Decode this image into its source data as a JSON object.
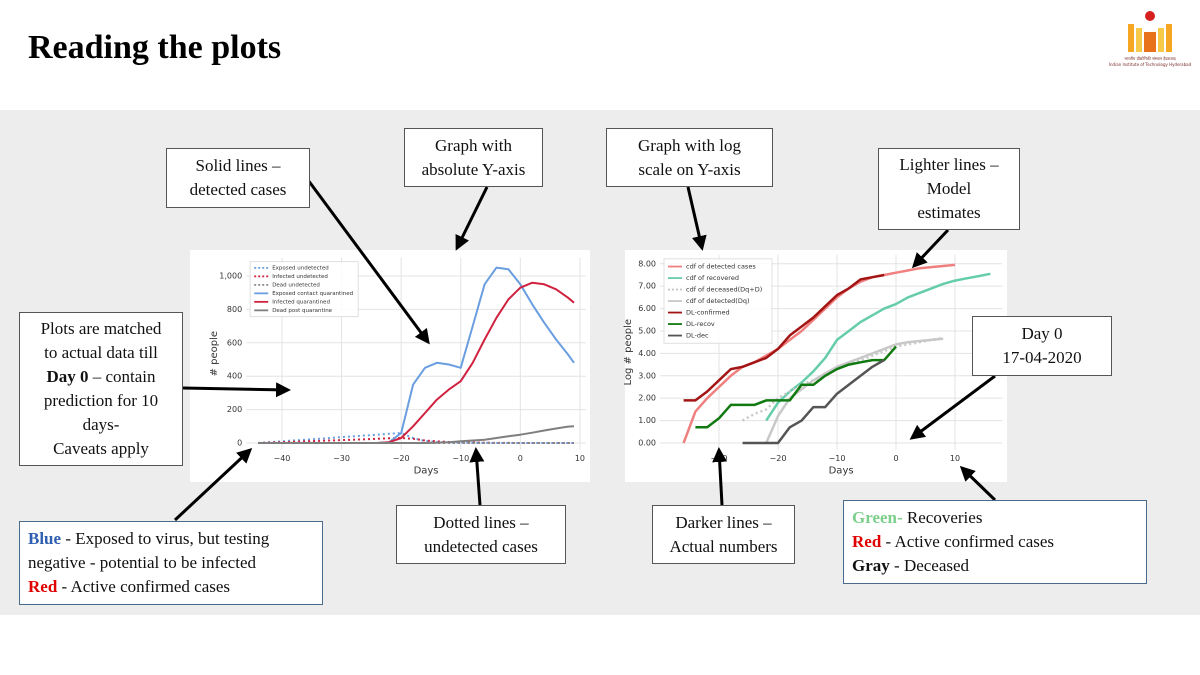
{
  "title": "Reading the plots",
  "logo": {
    "caption_hi": "भारतीय प्रौद्योगिकी संस्थान हैदराबाद",
    "caption_en": "Indian Institute of Technology Hyderabad"
  },
  "chart_data": [
    {
      "type": "line",
      "xlabel": "Days",
      "ylabel": "# people",
      "grid": true,
      "legend": "upper left",
      "xlim": [
        -46,
        11
      ],
      "ylim": [
        -40,
        1110
      ],
      "xticks": [
        {
          "value": -40,
          "label": "−40"
        },
        {
          "value": -30,
          "label": "−30"
        },
        {
          "value": -20,
          "label": "−20"
        },
        {
          "value": -10,
          "label": "−10"
        },
        0,
        10
      ],
      "yticks": [
        0,
        200,
        400,
        600,
        800,
        {
          "value": 1000,
          "label": "1,000"
        }
      ],
      "x": [
        -44,
        -40,
        -36,
        -32,
        -28,
        -24,
        -22,
        -20,
        -18,
        -16,
        -14,
        -12,
        -10,
        -8,
        -6,
        -4,
        -2,
        0,
        2,
        4,
        6,
        8,
        9
      ],
      "series": [
        {
          "name": "Exposed undetected",
          "color": "#6a9ee0",
          "dash": true,
          "values": [
            0,
            10,
            20,
            30,
            40,
            50,
            55,
            60,
            30,
            12,
            6,
            3,
            2,
            1,
            1,
            0,
            0,
            0,
            0,
            0,
            0,
            0,
            0
          ]
        },
        {
          "name": "Infected undetected",
          "color": "#d0223f",
          "dash": true,
          "values": [
            0,
            5,
            10,
            15,
            20,
            25,
            28,
            30,
            25,
            15,
            10,
            6,
            4,
            3,
            2,
            1,
            1,
            0,
            0,
            0,
            0,
            0,
            0
          ]
        },
        {
          "name": "Dead undetected",
          "color": "#8a8a8a",
          "dash": true,
          "values": [
            0,
            0,
            0,
            0,
            0,
            0,
            0,
            0,
            0,
            0,
            0,
            0,
            0,
            0,
            0,
            0,
            0,
            0,
            0,
            0,
            0,
            0,
            0
          ]
        },
        {
          "name": "Exposed contact quarantined",
          "color": "#6a9ee0",
          "values": [
            0,
            0,
            0,
            0,
            0,
            0,
            5,
            60,
            350,
            450,
            480,
            470,
            450,
            700,
            950,
            1050,
            1040,
            950,
            830,
            720,
            620,
            530,
            480
          ]
        },
        {
          "name": "Infected quarantined",
          "color": "#d0223f",
          "values": [
            0,
            0,
            0,
            0,
            0,
            0,
            5,
            30,
            100,
            180,
            260,
            320,
            370,
            480,
            620,
            750,
            860,
            930,
            960,
            950,
            920,
            870,
            840
          ]
        },
        {
          "name": "Dead post quarantine",
          "color": "#7f7f7f",
          "values": [
            0,
            0,
            0,
            0,
            0,
            0,
            0,
            0,
            0,
            0,
            2,
            5,
            10,
            15,
            20,
            30,
            40,
            50,
            62,
            75,
            87,
            98,
            100
          ]
        }
      ]
    },
    {
      "type": "line",
      "xlabel": "Days",
      "ylabel": "Log # people",
      "grid": true,
      "legend": "upper left",
      "xlim": [
        -40,
        18
      ],
      "ylim": [
        -0.3,
        8.4
      ],
      "xticks": [
        {
          "value": -30,
          "label": "−30"
        },
        {
          "value": -20,
          "label": "−20"
        },
        {
          "value": -10,
          "label": "−10"
        },
        0,
        10
      ],
      "yticks": [
        {
          "value": 0,
          "label": "0.00"
        },
        {
          "value": 1,
          "label": "1.00"
        },
        {
          "value": 2,
          "label": "2.00"
        },
        {
          "value": 3,
          "label": "3.00"
        },
        {
          "value": 4,
          "label": "4.00"
        },
        {
          "value": 5,
          "label": "5.00"
        },
        {
          "value": 6,
          "label": "6.00"
        },
        {
          "value": 7,
          "label": "7.00"
        },
        {
          "value": 8,
          "label": "8.00"
        }
      ],
      "x": [
        -36,
        -34,
        -32,
        -30,
        -28,
        -26,
        -24,
        -22,
        -20,
        -18,
        -16,
        -14,
        -12,
        -10,
        -8,
        -6,
        -4,
        -2,
        0,
        2,
        4,
        6,
        8,
        10,
        12,
        14,
        16
      ],
      "series": [
        {
          "name": "cdf of detected cases",
          "color": "#f08080",
          "width": 2.5,
          "values": [
            0,
            1.4,
            2.0,
            2.5,
            3.0,
            3.4,
            3.6,
            3.9,
            4.2,
            4.6,
            5.0,
            5.5,
            6.0,
            6.5,
            6.9,
            7.2,
            7.4,
            7.5,
            7.6,
            7.7,
            7.8,
            7.85,
            7.9,
            7.95,
            null,
            null,
            null
          ]
        },
        {
          "name": "cdf of recovered",
          "color": "#66cdaa",
          "width": 2.5,
          "values": [
            null,
            null,
            null,
            null,
            null,
            null,
            null,
            1.0,
            1.8,
            2.3,
            2.7,
            3.2,
            3.8,
            4.6,
            5.0,
            5.4,
            5.7,
            6.0,
            6.2,
            6.5,
            6.7,
            6.9,
            7.1,
            7.25,
            7.35,
            7.45,
            7.55
          ]
        },
        {
          "name": "cdf of deceased(Dq+D)",
          "color": "#c8c8c8",
          "dash": true,
          "width": 2.5,
          "values": [
            null,
            null,
            null,
            null,
            null,
            1.0,
            1.3,
            1.5,
            2.0,
            2.3,
            2.6,
            2.8,
            3.0,
            3.3,
            3.5,
            3.7,
            3.9,
            4.1,
            4.3,
            4.4,
            4.5,
            4.6,
            4.7,
            null,
            null,
            null,
            null
          ]
        },
        {
          "name": "cdf of detected(Dq)",
          "color": "#c8c8c8",
          "width": 2.5,
          "values": [
            null,
            null,
            null,
            null,
            null,
            null,
            null,
            0,
            1.2,
            2.0,
            2.4,
            2.8,
            3.1,
            3.4,
            3.6,
            3.8,
            4.0,
            4.2,
            4.4,
            4.5,
            4.55,
            4.6,
            4.65,
            null,
            null,
            null,
            null
          ]
        },
        {
          "name": "DL-confirmed",
          "color": "#a31515",
          "width": 2.5,
          "values": [
            1.9,
            1.9,
            2.3,
            2.8,
            3.3,
            3.4,
            3.6,
            3.8,
            4.2,
            4.8,
            5.2,
            5.6,
            6.1,
            6.6,
            6.9,
            7.3,
            7.4,
            7.5,
            null,
            null,
            null,
            null,
            null,
            null,
            null,
            null,
            null
          ]
        },
        {
          "name": "DL-recov",
          "color": "#107a10",
          "width": 2.5,
          "values": [
            null,
            0.7,
            0.7,
            1.1,
            1.7,
            1.7,
            1.7,
            1.9,
            1.9,
            1.9,
            2.6,
            2.6,
            3.0,
            3.3,
            3.5,
            3.6,
            3.7,
            3.7,
            4.3,
            null,
            null,
            null,
            null,
            null,
            null,
            null,
            null
          ]
        },
        {
          "name": "DL-dec",
          "color": "#555555",
          "width": 2.5,
          "values": [
            null,
            null,
            null,
            null,
            null,
            0,
            0,
            0,
            0,
            0.7,
            1.0,
            1.6,
            1.6,
            2.2,
            2.6,
            3.0,
            3.4,
            3.7,
            null,
            null,
            null,
            null,
            null,
            null,
            null,
            null,
            null
          ]
        }
      ]
    }
  ],
  "callouts": [
    {
      "lines": [
        [
          {
            "text": "Solid lines –"
          }
        ],
        [
          {
            "text": "detected cases"
          }
        ]
      ]
    },
    {
      "lines": [
        [
          {
            "text": "Graph with"
          }
        ],
        [
          {
            "text": "absolute Y-axis"
          }
        ]
      ]
    },
    {
      "lines": [
        [
          {
            "text": "Graph with log"
          }
        ],
        [
          {
            "text": "scale on Y-axis"
          }
        ]
      ]
    },
    {
      "lines": [
        [
          {
            "text": "Lighter lines –"
          }
        ],
        [
          {
            "text": "Model"
          }
        ],
        [
          {
            "text": "estimates"
          }
        ]
      ]
    },
    {
      "lines": [
        [
          {
            "text": "Plots are matched"
          }
        ],
        [
          {
            "text": "to actual data till"
          }
        ],
        [
          {
            "text": "Day 0",
            "bold": true
          },
          {
            "text": " – contain"
          }
        ],
        [
          {
            "text": "prediction for 10"
          }
        ],
        [
          {
            "text": "days-"
          }
        ],
        [
          {
            "text": "Caveats apply"
          }
        ]
      ]
    },
    {
      "lines": [
        [
          {
            "text": "Day 0"
          }
        ],
        [
          {
            "text": "17-04-2020"
          }
        ]
      ]
    },
    {
      "lines": [
        [
          {
            "text": "Blue",
            "bold": true,
            "color": "#2f5fb0"
          },
          {
            "text": " - Exposed to virus, but testing"
          }
        ],
        [
          {
            "text": "negative - potential to be infected"
          }
        ],
        [
          {
            "text": "Red",
            "bold": true,
            "color": "#e00000"
          },
          {
            "text": " - Active confirmed cases"
          }
        ]
      ]
    },
    {
      "lines": [
        [
          {
            "text": "Dotted lines –"
          }
        ],
        [
          {
            "text": "undetected cases"
          }
        ]
      ]
    },
    {
      "lines": [
        [
          {
            "text": "Darker lines –"
          }
        ],
        [
          {
            "text": "Actual numbers"
          }
        ]
      ]
    },
    {
      "lines": [
        [
          {
            "text": "Green-",
            "bold": true,
            "color": "#7ccf8a"
          },
          {
            "text": " Recoveries"
          }
        ],
        [
          {
            "text": "Red",
            "bold": true,
            "color": "#e00000"
          },
          {
            "text": " - Active confirmed cases"
          }
        ],
        [
          {
            "text": "Gray",
            "bold": true
          },
          {
            "text": " - Deceased"
          }
        ]
      ]
    }
  ]
}
